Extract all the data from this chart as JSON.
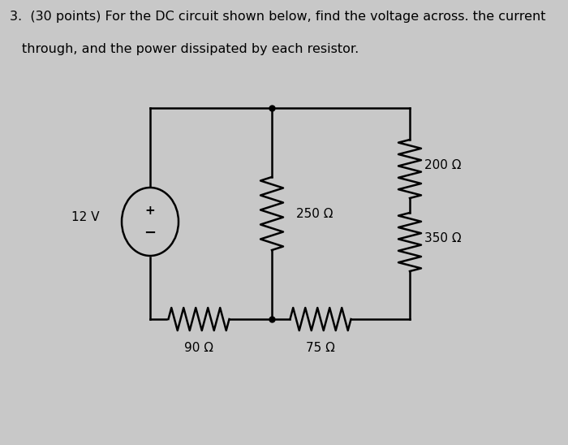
{
  "title_line1": "3.  (30 points) For the DC circuit shown below, find the voltage across. the current",
  "title_line2": "     through, and the power dissipated by each resistor.",
  "bg_color": "#c8c8c8",
  "circuit_bg": "#e8e8e8",
  "circuit_color": "#000000",
  "voltage_source": "12 V",
  "resistors": {
    "R1": "90 Ω",
    "R2": "250 Ω",
    "R3": "75 Ω",
    "R4": "200 Ω",
    "R5": "350 Ω"
  },
  "font_size_title": 11.5,
  "font_size_labels": 11
}
